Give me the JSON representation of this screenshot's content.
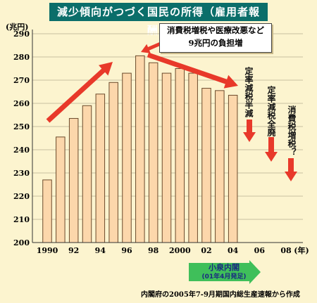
{
  "title": "減少傾向がつづく国民の所得（雇用者報酬）",
  "y_unit": "(兆円)",
  "x_unit": "(年)",
  "callout": {
    "line1": "消費税増税や医療改悪など",
    "line2": "9兆円の負担増"
  },
  "annotations": [
    {
      "id": "a1",
      "text": "定率減税半減"
    },
    {
      "id": "a2",
      "text": "定率減税全廃"
    },
    {
      "id": "a3",
      "text": "消費税増税？"
    }
  ],
  "koizumi": {
    "label": "小泉内閣",
    "sub": "(01年4月発足)"
  },
  "source": "内閣府の2005年7-9月期国内総生産速報から作成",
  "colors": {
    "bar_fill": "#fcd7ab",
    "bar_stroke": "#6b4a2c",
    "arrow_red": "#e8392a",
    "arrow_green": "#3fbf5a",
    "title_bg": "#0b6e6a",
    "background": "#fcf4cf"
  },
  "chart_data": {
    "type": "bar",
    "categories": [
      "1990",
      "1991",
      "1992",
      "1993",
      "1994",
      "1995",
      "1996",
      "1997",
      "1998",
      "1999",
      "2000",
      "2001",
      "2002",
      "2003",
      "2004"
    ],
    "values": [
      227,
      245.5,
      253.5,
      259,
      264,
      269,
      273,
      280.5,
      277.5,
      273,
      275,
      273,
      266.5,
      265.5,
      263.5
    ],
    "x_ticks": [
      "1990",
      "92",
      "94",
      "96",
      "98",
      "2000",
      "02",
      "04",
      "06",
      "08"
    ],
    "y_ticks": [
      200,
      210,
      220,
      230,
      240,
      250,
      260,
      270,
      280,
      290
    ],
    "ylim": [
      200,
      290
    ],
    "xlim": [
      1990,
      2008
    ],
    "grid": true
  }
}
